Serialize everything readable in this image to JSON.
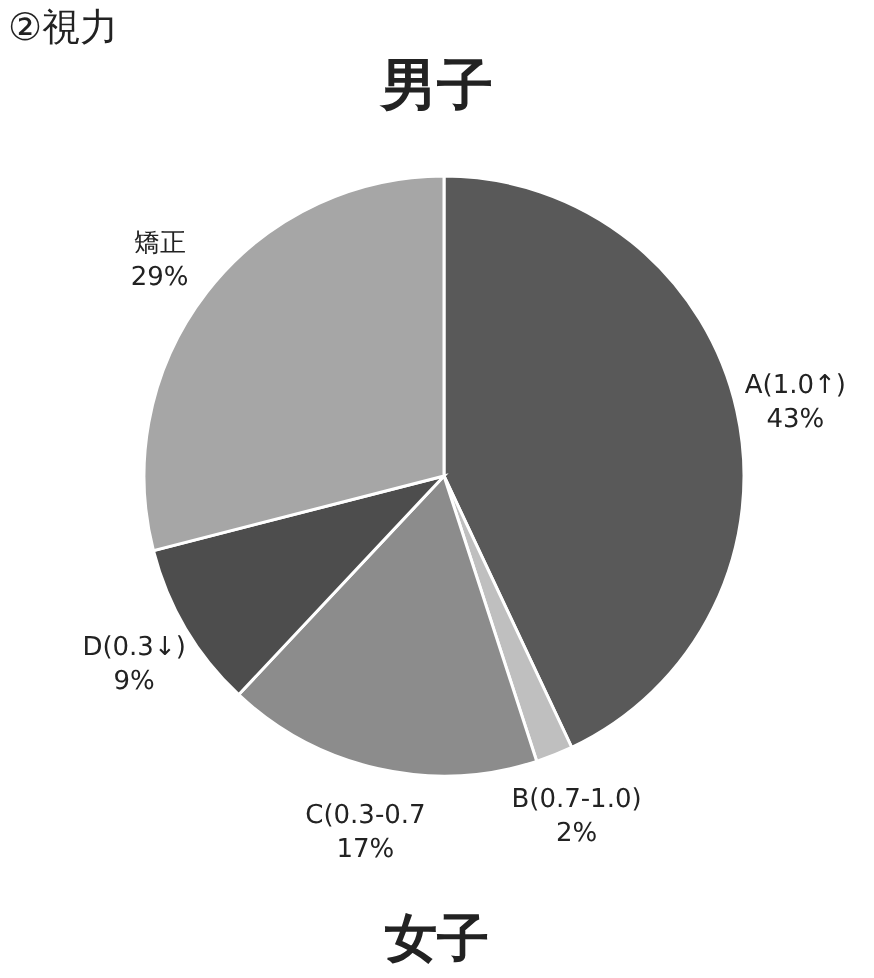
{
  "chart_data": {
    "type": "pie",
    "title": "②視力",
    "subtitle": "男子",
    "categories": [
      "A(1.0↑)",
      "B(0.7-1.0)",
      "C(0.3-0.7",
      "D(0.3↓)",
      "矯正"
    ],
    "values": [
      43,
      2,
      17,
      9,
      29
    ],
    "colors": [
      "#595959",
      "#bfbfbf",
      "#8c8c8c",
      "#4d4d4d",
      "#a6a6a6"
    ],
    "value_labels": [
      "43%",
      "2%",
      "17%",
      "9%",
      "29%"
    ],
    "annotations": [
      "女子"
    ]
  }
}
